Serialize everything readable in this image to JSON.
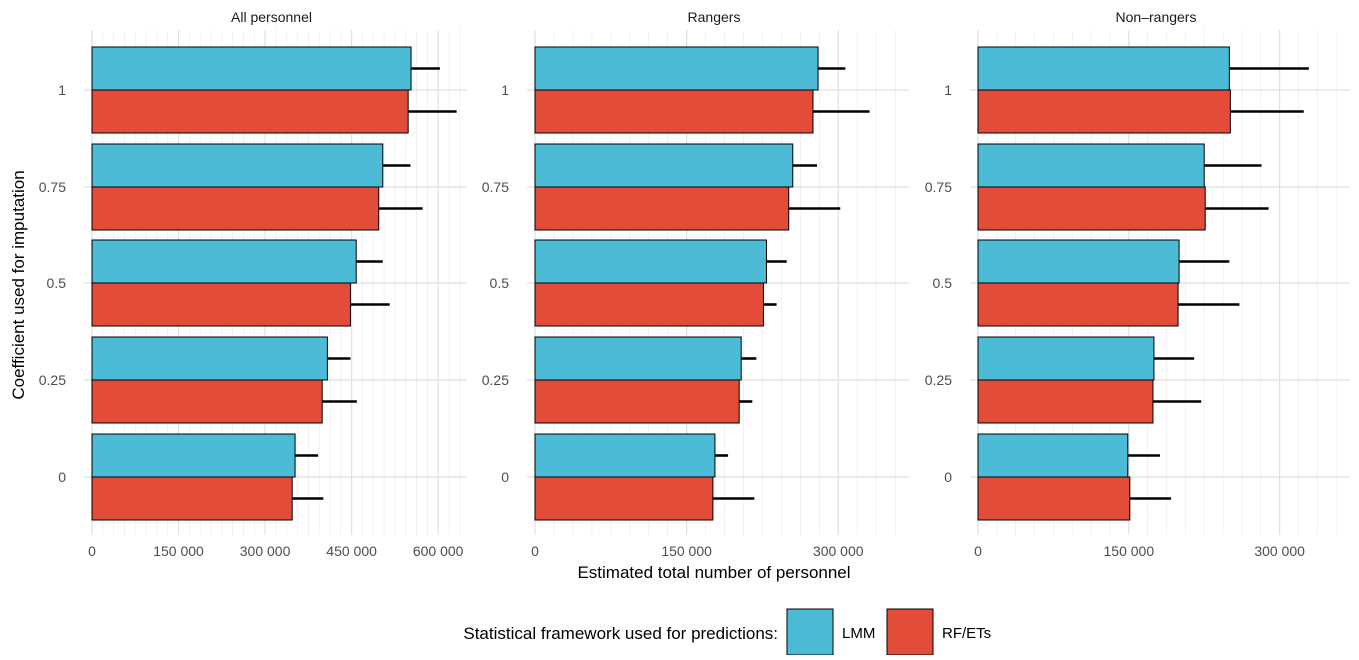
{
  "chart_data": {
    "type": "bar",
    "orientation": "horizontal",
    "xlabel": "Estimated total number of personnel",
    "ylabel": "Coefficient used for imputation",
    "categories": [
      "0",
      "0.25",
      "0.5",
      "0.75",
      "1"
    ],
    "legend": {
      "title": "Statistical framework used for predictions:",
      "position": "bottom",
      "items": [
        {
          "name": "LMM",
          "color": "#4BBBD6"
        },
        {
          "name": "RF/ETs",
          "color": "#E34C38"
        }
      ]
    },
    "grid": true,
    "panels": [
      {
        "title": "All personnel",
        "xlim": [
          0,
          650000
        ],
        "xticks": [
          0,
          150000,
          300000,
          450000,
          600000
        ],
        "xtick_labels": [
          "0",
          "150 000",
          "300 000",
          "450 000",
          "600 000"
        ],
        "series": [
          {
            "name": "LMM",
            "values": [
              352000,
              408000,
              458000,
              504000,
              553000
            ],
            "error_high": [
              392000,
              448000,
              504000,
              552000,
              603000
            ]
          },
          {
            "name": "RF/ETs",
            "values": [
              347000,
              399000,
              448000,
              497000,
              548000
            ],
            "error_high": [
              401000,
              459000,
              516000,
              573000,
              632000
            ]
          }
        ]
      },
      {
        "title": "Rangers",
        "xlim": [
          0,
          370000
        ],
        "xticks": [
          0,
          150000,
          300000
        ],
        "xtick_labels": [
          "0",
          "150 000",
          "300 000"
        ],
        "series": [
          {
            "name": "LMM",
            "values": [
              178000,
              204000,
              229000,
              255000,
              280000
            ],
            "error_high": [
              191000,
              219000,
              249000,
              279000,
              307000
            ]
          },
          {
            "name": "RF/ETs",
            "values": [
              176000,
              202000,
              226000,
              251000,
              275000
            ],
            "error_high": [
              217000,
              215000,
              239000,
              302000,
              331000
            ]
          }
        ]
      },
      {
        "title": "Non–rangers",
        "xlim": [
          0,
          370000
        ],
        "xticks": [
          0,
          150000,
          300000
        ],
        "xtick_labels": [
          "0",
          "150 000",
          "300 000"
        ],
        "series": [
          {
            "name": "LMM",
            "values": [
              149000,
              175000,
              200000,
              225000,
              250000
            ],
            "error_high": [
              181000,
              215000,
              250000,
              282000,
              329000
            ]
          },
          {
            "name": "RF/ETs",
            "values": [
              151000,
              174000,
              199000,
              226000,
              251000
            ],
            "error_high": [
              192000,
              222000,
              260000,
              289000,
              324000
            ]
          }
        ]
      }
    ]
  }
}
